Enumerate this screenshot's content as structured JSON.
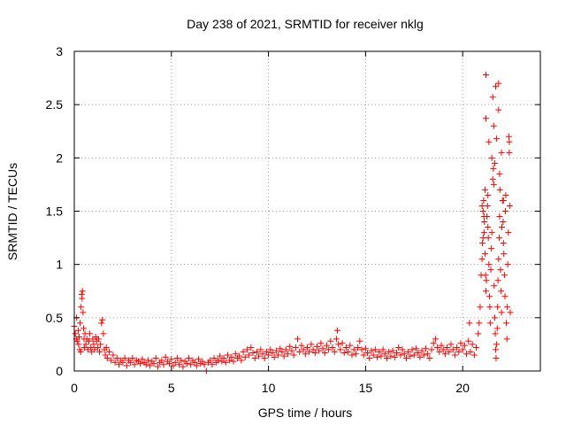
{
  "chart_data": {
    "type": "scatter",
    "title": "Day 238 of 2021, SRMTID for receiver nklg",
    "xlabel": "GPS time / hours",
    "ylabel": "SRMTID / TECUs",
    "xlim": [
      0,
      24
    ],
    "ylim": [
      0,
      3
    ],
    "xticks": [
      0,
      5,
      10,
      15,
      20
    ],
    "xtick_labels": [
      "0",
      "5",
      "10",
      "15",
      "20"
    ],
    "yticks": [
      0,
      0.5,
      1,
      1.5,
      2,
      2.5,
      3
    ],
    "ytick_labels": [
      "0",
      "0.5",
      "1",
      "1.5",
      "2",
      "2.5",
      "3"
    ],
    "grid": true,
    "marker": "+",
    "series": [
      {
        "name": "SRMTID",
        "color": "#ff0000",
        "points": [
          [
            0.0,
            0.42
          ],
          [
            0.05,
            0.35
          ],
          [
            0.1,
            0.3
          ],
          [
            0.12,
            0.5
          ],
          [
            0.15,
            0.28
          ],
          [
            0.2,
            0.38
          ],
          [
            0.22,
            0.25
          ],
          [
            0.25,
            0.32
          ],
          [
            0.28,
            0.2
          ],
          [
            0.3,
            0.45
          ],
          [
            0.33,
            0.18
          ],
          [
            0.35,
            0.6
          ],
          [
            0.38,
            0.72
          ],
          [
            0.4,
            0.68
          ],
          [
            0.42,
            0.75
          ],
          [
            0.45,
            0.55
          ],
          [
            0.48,
            0.4
          ],
          [
            0.5,
            0.3
          ],
          [
            0.52,
            0.22
          ],
          [
            0.55,
            0.35
          ],
          [
            0.6,
            0.25
          ],
          [
            0.65,
            0.3
          ],
          [
            0.7,
            0.2
          ],
          [
            0.75,
            0.28
          ],
          [
            0.8,
            0.35
          ],
          [
            0.85,
            0.22
          ],
          [
            0.9,
            0.18
          ],
          [
            0.95,
            0.3
          ],
          [
            1.0,
            0.25
          ],
          [
            1.05,
            0.2
          ],
          [
            1.1,
            0.32
          ],
          [
            1.15,
            0.28
          ],
          [
            1.2,
            0.22
          ],
          [
            1.25,
            0.3
          ],
          [
            1.3,
            0.18
          ],
          [
            1.35,
            0.25
          ],
          [
            1.4,
            0.45
          ],
          [
            1.45,
            0.48
          ],
          [
            1.5,
            0.35
          ],
          [
            1.55,
            0.2
          ],
          [
            1.6,
            0.15
          ],
          [
            1.65,
            0.22
          ],
          [
            1.7,
            0.12
          ],
          [
            1.8,
            0.18
          ],
          [
            1.9,
            0.1
          ],
          [
            2.0,
            0.15
          ],
          [
            2.1,
            0.08
          ],
          [
            2.2,
            0.12
          ],
          [
            2.3,
            0.06
          ],
          [
            2.4,
            0.1
          ],
          [
            2.5,
            0.08
          ],
          [
            2.6,
            0.12
          ],
          [
            2.7,
            0.05
          ],
          [
            2.8,
            0.1
          ],
          [
            2.9,
            0.08
          ],
          [
            3.0,
            0.12
          ],
          [
            3.1,
            0.06
          ],
          [
            3.2,
            0.1
          ],
          [
            3.3,
            0.09
          ],
          [
            3.4,
            0.07
          ],
          [
            3.5,
            0.11
          ],
          [
            3.6,
            0.08
          ],
          [
            3.7,
            0.06
          ],
          [
            3.8,
            0.1
          ],
          [
            3.9,
            0.05
          ],
          [
            4.0,
            0.09
          ],
          [
            4.1,
            0.07
          ],
          [
            4.2,
            0.12
          ],
          [
            4.3,
            0.04
          ],
          [
            4.4,
            0.08
          ],
          [
            4.5,
            0.1
          ],
          [
            4.6,
            0.06
          ],
          [
            4.7,
            0.13
          ],
          [
            4.8,
            0.09
          ],
          [
            4.9,
            0.07
          ],
          [
            5.0,
            0.11
          ],
          [
            5.1,
            0.05
          ],
          [
            5.2,
            0.08
          ],
          [
            5.3,
            0.12
          ],
          [
            5.4,
            0.06
          ],
          [
            5.5,
            0.1
          ],
          [
            5.6,
            0.04
          ],
          [
            5.7,
            0.09
          ],
          [
            5.8,
            0.07
          ],
          [
            5.9,
            0.12
          ],
          [
            6.0,
            0.06
          ],
          [
            6.1,
            0.1
          ],
          [
            6.2,
            0.08
          ],
          [
            6.3,
            0.05
          ],
          [
            6.4,
            0.11
          ],
          [
            6.5,
            0.07
          ],
          [
            6.6,
            0.09
          ],
          [
            6.7,
            0.06
          ],
          [
            6.8,
            0.0
          ],
          [
            6.9,
            0.08
          ],
          [
            7.0,
            0.1
          ],
          [
            7.1,
            0.06
          ],
          [
            7.2,
            0.12
          ],
          [
            7.3,
            0.08
          ],
          [
            7.4,
            0.1
          ],
          [
            7.5,
            0.14
          ],
          [
            7.6,
            0.09
          ],
          [
            7.7,
            0.12
          ],
          [
            7.8,
            0.08
          ],
          [
            7.9,
            0.15
          ],
          [
            8.0,
            0.1
          ],
          [
            8.1,
            0.13
          ],
          [
            8.2,
            0.09
          ],
          [
            8.3,
            0.16
          ],
          [
            8.4,
            0.12
          ],
          [
            8.5,
            0.14
          ],
          [
            8.6,
            0.1
          ],
          [
            8.7,
            0.18
          ],
          [
            8.8,
            0.13
          ],
          [
            8.9,
            0.2
          ],
          [
            9.0,
            0.15
          ],
          [
            9.1,
            0.22
          ],
          [
            9.2,
            0.17
          ],
          [
            9.3,
            0.12
          ],
          [
            9.4,
            0.18
          ],
          [
            9.5,
            0.14
          ],
          [
            9.6,
            0.2
          ],
          [
            9.7,
            0.16
          ],
          [
            9.8,
            0.12
          ],
          [
            9.9,
            0.18
          ],
          [
            10.0,
            0.15
          ],
          [
            10.1,
            0.2
          ],
          [
            10.2,
            0.17
          ],
          [
            10.3,
            0.13
          ],
          [
            10.4,
            0.19
          ],
          [
            10.5,
            0.15
          ],
          [
            10.6,
            0.21
          ],
          [
            10.7,
            0.18
          ],
          [
            10.8,
            0.14
          ],
          [
            10.9,
            0.2
          ],
          [
            11.0,
            0.16
          ],
          [
            11.1,
            0.23
          ],
          [
            11.2,
            0.19
          ],
          [
            11.3,
            0.15
          ],
          [
            11.4,
            0.22
          ],
          [
            11.5,
            0.3
          ],
          [
            11.6,
            0.18
          ],
          [
            11.7,
            0.24
          ],
          [
            11.8,
            0.2
          ],
          [
            11.9,
            0.16
          ],
          [
            12.0,
            0.22
          ],
          [
            12.1,
            0.18
          ],
          [
            12.2,
            0.25
          ],
          [
            12.3,
            0.2
          ],
          [
            12.4,
            0.17
          ],
          [
            12.5,
            0.23
          ],
          [
            12.6,
            0.19
          ],
          [
            12.7,
            0.26
          ],
          [
            12.8,
            0.21
          ],
          [
            12.9,
            0.17
          ],
          [
            13.0,
            0.24
          ],
          [
            13.1,
            0.2
          ],
          [
            13.2,
            0.28
          ],
          [
            13.3,
            0.22
          ],
          [
            13.4,
            0.18
          ],
          [
            13.5,
            0.3
          ],
          [
            13.55,
            0.38
          ],
          [
            13.6,
            0.25
          ],
          [
            13.7,
            0.2
          ],
          [
            13.8,
            0.26
          ],
          [
            13.9,
            0.17
          ],
          [
            14.0,
            0.22
          ],
          [
            14.1,
            0.18
          ],
          [
            14.2,
            0.24
          ],
          [
            14.3,
            0.15
          ],
          [
            14.4,
            0.2
          ],
          [
            14.5,
            0.16
          ],
          [
            14.6,
            0.22
          ],
          [
            14.7,
            0.28
          ],
          [
            14.8,
            0.2
          ],
          [
            14.9,
            0.15
          ],
          [
            15.0,
            0.21
          ],
          [
            15.1,
            0.17
          ],
          [
            15.2,
            0.12
          ],
          [
            15.3,
            0.19
          ],
          [
            15.4,
            0.15
          ],
          [
            15.5,
            0.2
          ],
          [
            15.6,
            0.13
          ],
          [
            15.7,
            0.18
          ],
          [
            15.8,
            0.14
          ],
          [
            15.9,
            0.2
          ],
          [
            16.0,
            0.16
          ],
          [
            16.1,
            0.12
          ],
          [
            16.2,
            0.18
          ],
          [
            16.3,
            0.14
          ],
          [
            16.4,
            0.19
          ],
          [
            16.5,
            0.13
          ],
          [
            16.6,
            0.17
          ],
          [
            16.7,
            0.22
          ],
          [
            16.8,
            0.15
          ],
          [
            16.9,
            0.2
          ],
          [
            17.0,
            0.16
          ],
          [
            17.1,
            0.12
          ],
          [
            17.2,
            0.18
          ],
          [
            17.3,
            0.14
          ],
          [
            17.4,
            0.2
          ],
          [
            17.5,
            0.15
          ],
          [
            17.6,
            0.21
          ],
          [
            17.7,
            0.17
          ],
          [
            17.8,
            0.13
          ],
          [
            17.9,
            0.19
          ],
          [
            18.0,
            0.15
          ],
          [
            18.1,
            0.21
          ],
          [
            18.2,
            0.16
          ],
          [
            18.3,
            0.12
          ],
          [
            18.4,
            0.2
          ],
          [
            18.5,
            0.26
          ],
          [
            18.6,
            0.3
          ],
          [
            18.7,
            0.22
          ],
          [
            18.8,
            0.18
          ],
          [
            18.9,
            0.24
          ],
          [
            19.0,
            0.2
          ],
          [
            19.1,
            0.16
          ],
          [
            19.2,
            0.22
          ],
          [
            19.3,
            0.18
          ],
          [
            19.4,
            0.25
          ],
          [
            19.5,
            0.2
          ],
          [
            19.6,
            0.15
          ],
          [
            19.7,
            0.22
          ],
          [
            19.8,
            0.18
          ],
          [
            19.9,
            0.26
          ],
          [
            20.0,
            0.2
          ],
          [
            20.1,
            0.24
          ],
          [
            20.2,
            0.16
          ],
          [
            20.3,
            0.28
          ],
          [
            20.35,
            0.45
          ],
          [
            20.4,
            0.18
          ],
          [
            20.5,
            0.25
          ],
          [
            20.6,
            0.15
          ],
          [
            20.7,
            0.22
          ],
          [
            20.8,
            0.35
          ],
          [
            20.85,
            0.45
          ],
          [
            20.9,
            0.6
          ],
          [
            20.95,
            0.9
          ],
          [
            21.0,
            1.05
          ],
          [
            21.02,
            1.2
          ],
          [
            21.05,
            1.5
          ],
          [
            21.08,
            1.6
          ],
          [
            21.1,
            1.3
          ],
          [
            21.12,
            1.4
          ],
          [
            21.15,
            1.1
          ],
          [
            21.18,
            0.9
          ],
          [
            21.2,
            0.75
          ],
          [
            21.22,
            0.85
          ],
          [
            21.25,
            1.45
          ],
          [
            21.28,
            1.55
          ],
          [
            21.3,
            1.35
          ],
          [
            21.32,
            1.25
          ],
          [
            21.35,
            1.0
          ],
          [
            21.38,
            0.7
          ],
          [
            21.4,
            0.6
          ],
          [
            21.42,
            0.45
          ],
          [
            21.45,
            0.95
          ],
          [
            21.48,
            1.15
          ],
          [
            21.5,
            1.3
          ],
          [
            21.55,
            1.8
          ],
          [
            21.58,
            1.9
          ],
          [
            21.6,
            1.75
          ],
          [
            21.62,
            0.8
          ],
          [
            21.65,
            0.5
          ],
          [
            21.68,
            0.35
          ],
          [
            21.7,
            0.2
          ],
          [
            21.72,
            0.12
          ],
          [
            21.75,
            0.25
          ],
          [
            21.78,
            0.4
          ],
          [
            21.8,
            0.6
          ],
          [
            21.82,
            0.85
          ],
          [
            21.85,
            1.05
          ],
          [
            21.88,
            1.25
          ],
          [
            21.9,
            1.45
          ],
          [
            21.92,
            1.7
          ],
          [
            21.95,
            0.95
          ],
          [
            21.98,
            0.75
          ],
          [
            22.0,
            0.55
          ],
          [
            22.02,
            1.35
          ],
          [
            22.05,
            1.6
          ],
          [
            22.08,
            1.4
          ],
          [
            22.1,
            1.2
          ],
          [
            22.12,
            1.1
          ],
          [
            22.15,
            0.9
          ],
          [
            22.18,
            0.7
          ],
          [
            22.2,
            1.5
          ],
          [
            22.22,
            1.65
          ],
          [
            22.25,
            0.45
          ],
          [
            22.28,
            0.3
          ],
          [
            22.3,
            0.6
          ],
          [
            22.32,
            1.0
          ],
          [
            22.35,
            1.3
          ],
          [
            22.38,
            2.2
          ],
          [
            22.4,
            2.05
          ],
          [
            22.42,
            1.55
          ],
          [
            22.45,
            0.55
          ],
          [
            21.2,
            2.78
          ],
          [
            21.2,
            2.37
          ],
          [
            21.55,
            2.57
          ],
          [
            21.7,
            2.67
          ],
          [
            21.85,
            2.7
          ],
          [
            21.85,
            2.45
          ],
          [
            21.6,
            2.3
          ],
          [
            21.75,
            2.18
          ],
          [
            22.0,
            2.05
          ],
          [
            22.4,
            2.15
          ],
          [
            21.35,
            2.15
          ],
          [
            21.5,
            2.0
          ],
          [
            21.65,
            1.95
          ],
          [
            21.9,
            1.85
          ],
          [
            22.1,
            1.6
          ],
          [
            21.3,
            1.65
          ],
          [
            21.15,
            1.7
          ],
          [
            21.1,
            1.45
          ],
          [
            21.05,
            1.25
          ],
          [
            21.0,
            1.55
          ]
        ]
      }
    ]
  }
}
